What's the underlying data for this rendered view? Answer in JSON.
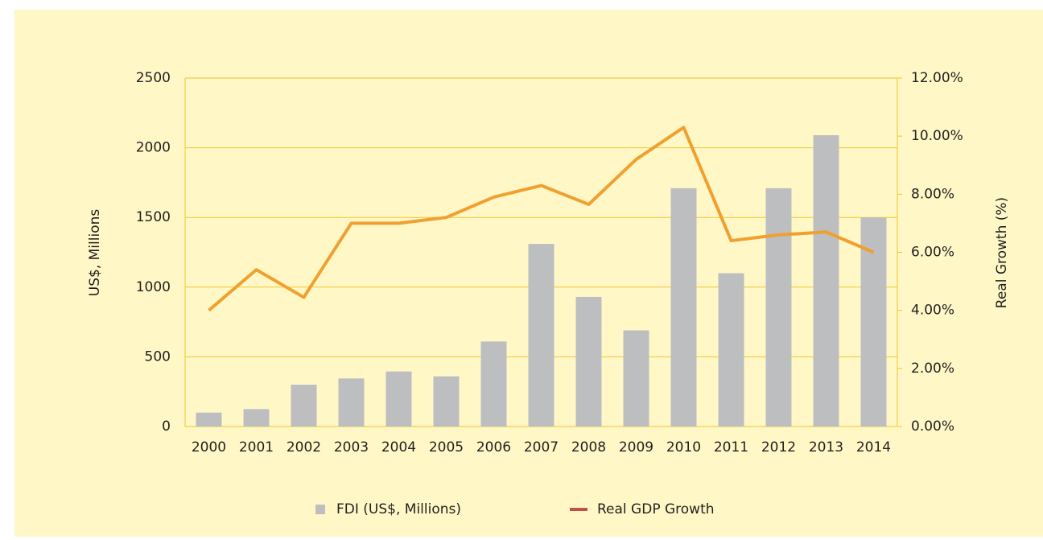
{
  "chart_data": {
    "type": "bar-line",
    "y_label": "US$, Millions",
    "y2_label": "Real Growth (%)",
    "categories": [
      "2000",
      "2001",
      "2002",
      "2003",
      "2004",
      "2005",
      "2006",
      "2007",
      "2008",
      "2009",
      "2010",
      "2011",
      "2012",
      "2013",
      "2014"
    ],
    "series": [
      {
        "name": "FDI (US$, Millions)",
        "type": "bar",
        "color": "#bcbec0",
        "values": [
          100,
          125,
          300,
          345,
          395,
          360,
          610,
          1310,
          930,
          690,
          1710,
          1100,
          1710,
          2090,
          1500
        ]
      },
      {
        "name": "Real GDP Growth",
        "type": "line",
        "axis": "y2",
        "color": "#f0a030",
        "legend_color": "#c0504d",
        "values": [
          4.0,
          5.4,
          4.45,
          7.0,
          7.0,
          7.2,
          7.9,
          8.3,
          7.65,
          9.2,
          10.3,
          6.4,
          6.6,
          6.7,
          6.0
        ]
      }
    ],
    "ylim": [
      0,
      2500
    ],
    "yticks": [
      0,
      500,
      1000,
      1500,
      2000,
      2500
    ],
    "y2lim": [
      0,
      12
    ],
    "y2ticks": [
      {
        "value": 0,
        "label": "0.00%"
      },
      {
        "value": 2,
        "label": "2.00%"
      },
      {
        "value": 4,
        "label": "4.00%"
      },
      {
        "value": 6,
        "label": "6.00%"
      },
      {
        "value": 8,
        "label": "8.00%"
      },
      {
        "value": 10,
        "label": "10.00%"
      },
      {
        "value": 12,
        "label": "12.00%"
      }
    ],
    "grid": true,
    "grid_color": "#f2c530",
    "legend": "bottom"
  }
}
